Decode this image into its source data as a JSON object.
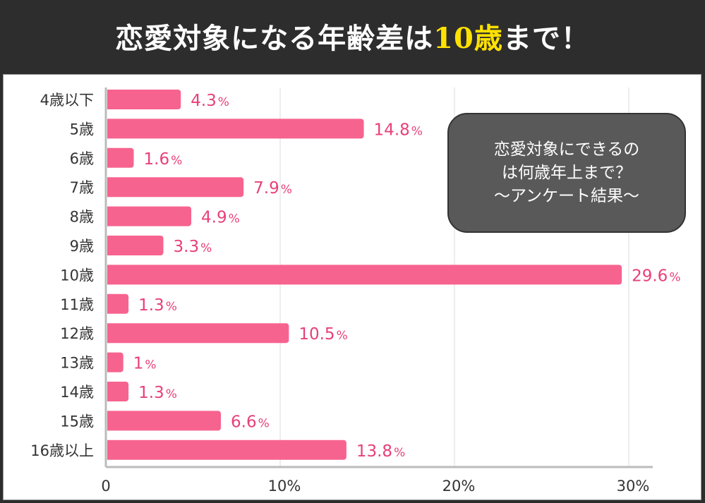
{
  "header": {
    "title_pre": "恋愛対象になる年齢差は",
    "title_highlight": "10歳",
    "title_post": "まで！",
    "highlight_color": "#ffe100"
  },
  "callout": {
    "lines": [
      "恋愛対象にできるの",
      "は何歳年上まで？",
      "～アンケート結果～"
    ]
  },
  "chart_data": {
    "type": "bar",
    "orientation": "horizontal",
    "categories": [
      "4歳以下",
      "5歳",
      "6歳",
      "7歳",
      "8歳",
      "9歳",
      "10歳",
      "11歳",
      "12歳",
      "13歳",
      "14歳",
      "15歳",
      "16歳以上"
    ],
    "values": [
      4.3,
      14.8,
      1.6,
      7.9,
      4.9,
      3.3,
      29.6,
      1.3,
      10.5,
      1,
      1.3,
      6.6,
      13.8
    ],
    "value_labels": [
      "4.3",
      "14.8",
      "1.6",
      "7.9",
      "4.9",
      "3.3",
      "29.6",
      "1.3",
      "10.5",
      "1",
      "1.3",
      "6.6",
      "13.8"
    ],
    "unit": "%",
    "xlim": [
      0,
      30
    ],
    "xticks": [
      "0",
      "10%",
      "20%",
      "30%"
    ],
    "grid": true,
    "bar_color": "#f7638f",
    "label_color": "#e8407a"
  }
}
